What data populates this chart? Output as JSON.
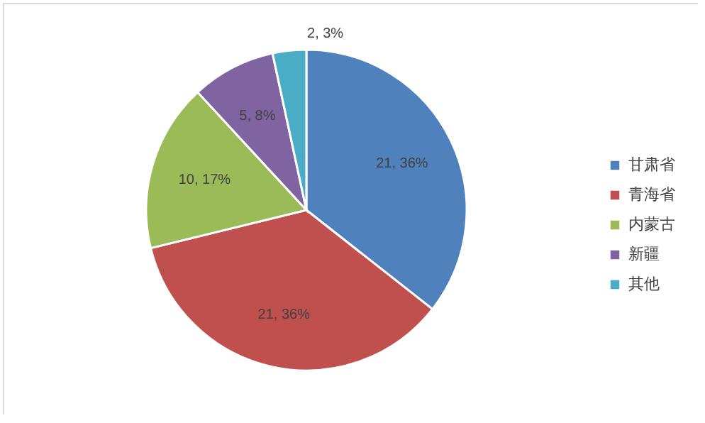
{
  "chart_data": {
    "type": "pie",
    "categories": [
      "甘肃省",
      "青海省",
      "内蒙古",
      "新疆",
      "其他"
    ],
    "values": [
      21,
      21,
      10,
      5,
      2
    ],
    "colors": [
      "#4f81bd",
      "#c0504d",
      "#9bbb59",
      "#8064a2",
      "#4bacc6"
    ],
    "value_labels": [
      "21, 36%",
      "21, 36%",
      "10, 17%",
      "5, 8%",
      "2, 3%"
    ],
    "legend": "right"
  }
}
